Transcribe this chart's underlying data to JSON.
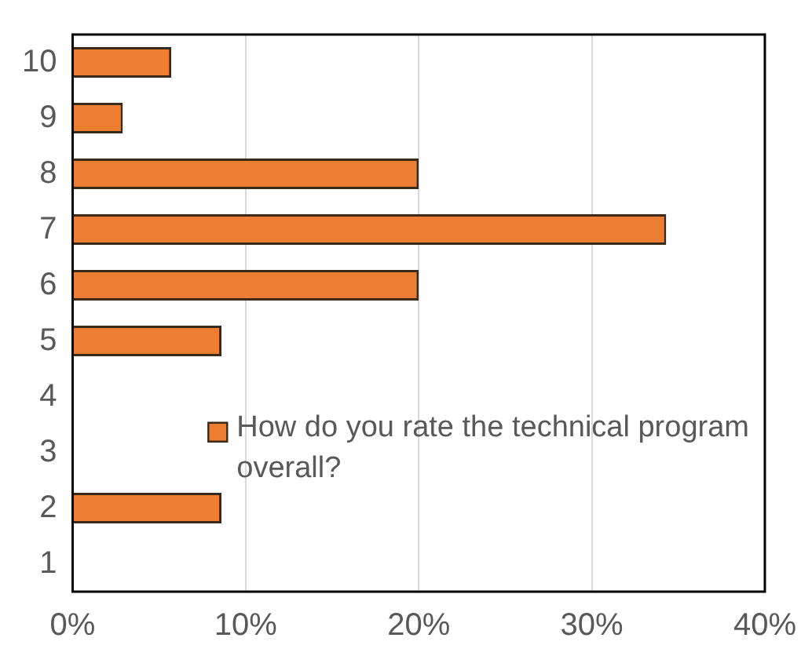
{
  "chart_data": {
    "type": "bar",
    "orientation": "horizontal",
    "categories": [
      "10",
      "9",
      "8",
      "7",
      "6",
      "5",
      "4",
      "3",
      "2",
      "1"
    ],
    "series": [
      {
        "name": "How do you rate the technical program overall?",
        "color": "#ed7d31",
        "values": [
          5.7,
          2.9,
          20,
          34.3,
          20,
          8.6,
          0,
          0,
          8.6,
          0
        ]
      }
    ],
    "xlim": [
      0,
      40
    ],
    "xticks": [
      {
        "value": 0,
        "label": "0%"
      },
      {
        "value": 10,
        "label": "10%"
      },
      {
        "value": 20,
        "label": "20%"
      },
      {
        "value": 30,
        "label": "30%"
      },
      {
        "value": 40,
        "label": "40%"
      }
    ],
    "grid": "x",
    "legend": "right"
  }
}
